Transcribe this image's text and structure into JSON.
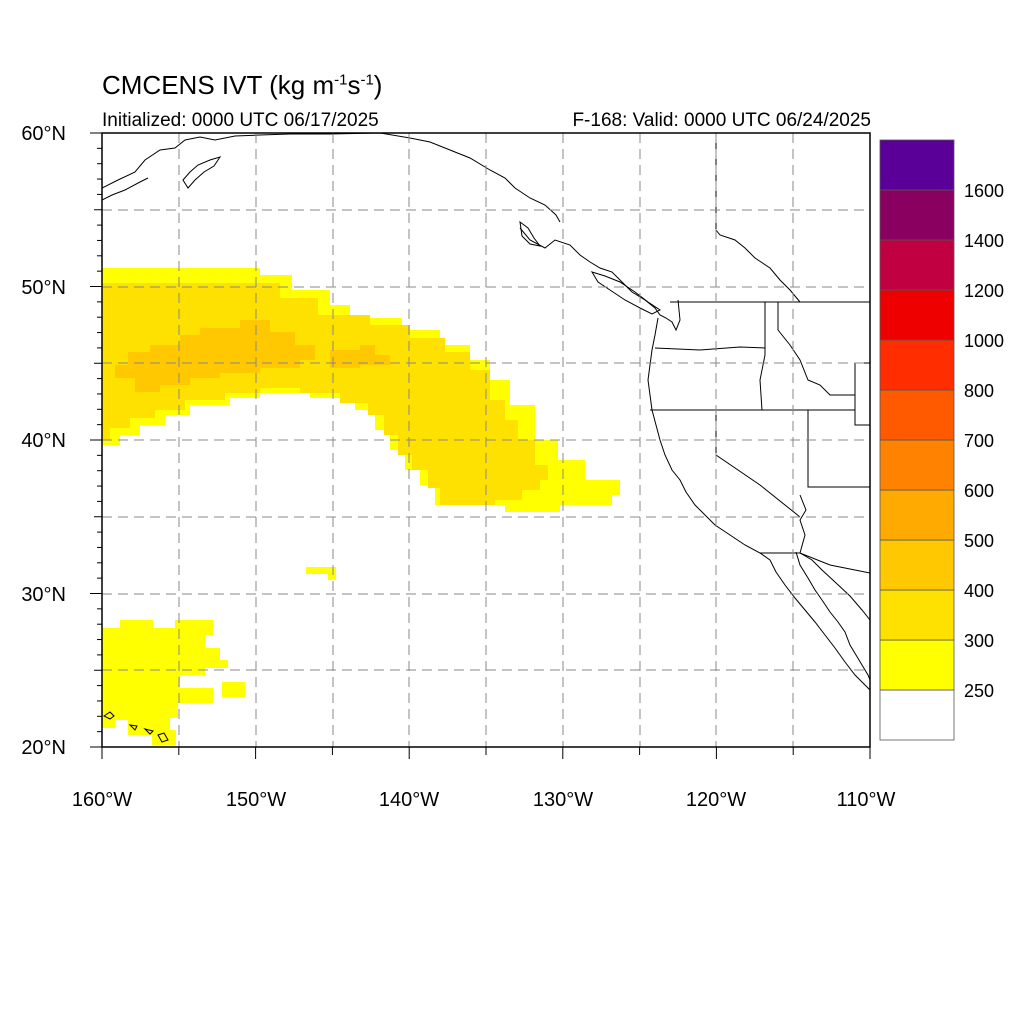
{
  "header": {
    "title_main": "CMCENS IVT (kg m",
    "title_sup1": "-1",
    "title_mid": "s",
    "title_sup2": "-1",
    "title_end": ")",
    "initialized": "Initialized: 0000 UTC 06/17/2025",
    "valid": "F-168: Valid: 0000 UTC 06/24/2025"
  },
  "map": {
    "lon_labels": [
      "160°W",
      "150°W",
      "140°W",
      "130°W",
      "120°W",
      "110°W"
    ],
    "lat_labels": [
      "60°N",
      "50°N",
      "40°N",
      "30°N",
      "20°N"
    ],
    "lon_range": [
      -160,
      -110
    ],
    "lat_range": [
      20,
      60
    ]
  },
  "colorbar": {
    "labels": [
      "250",
      "300",
      "400",
      "500",
      "600",
      "700",
      "800",
      "1000",
      "1200",
      "1400",
      "1600"
    ],
    "colors": [
      "#ffffff",
      "#ffff00",
      "#ffe100",
      "#ffc800",
      "#ffaa00",
      "#ff8200",
      "#ff5a00",
      "#ff2d00",
      "#ee0000",
      "#c00040",
      "#8a0060",
      "#5a0098"
    ]
  },
  "ivt_levels": {
    "level_250_color": "#ffff00",
    "level_300_color": "#ffe100",
    "level_400_color": "#ffc800"
  }
}
